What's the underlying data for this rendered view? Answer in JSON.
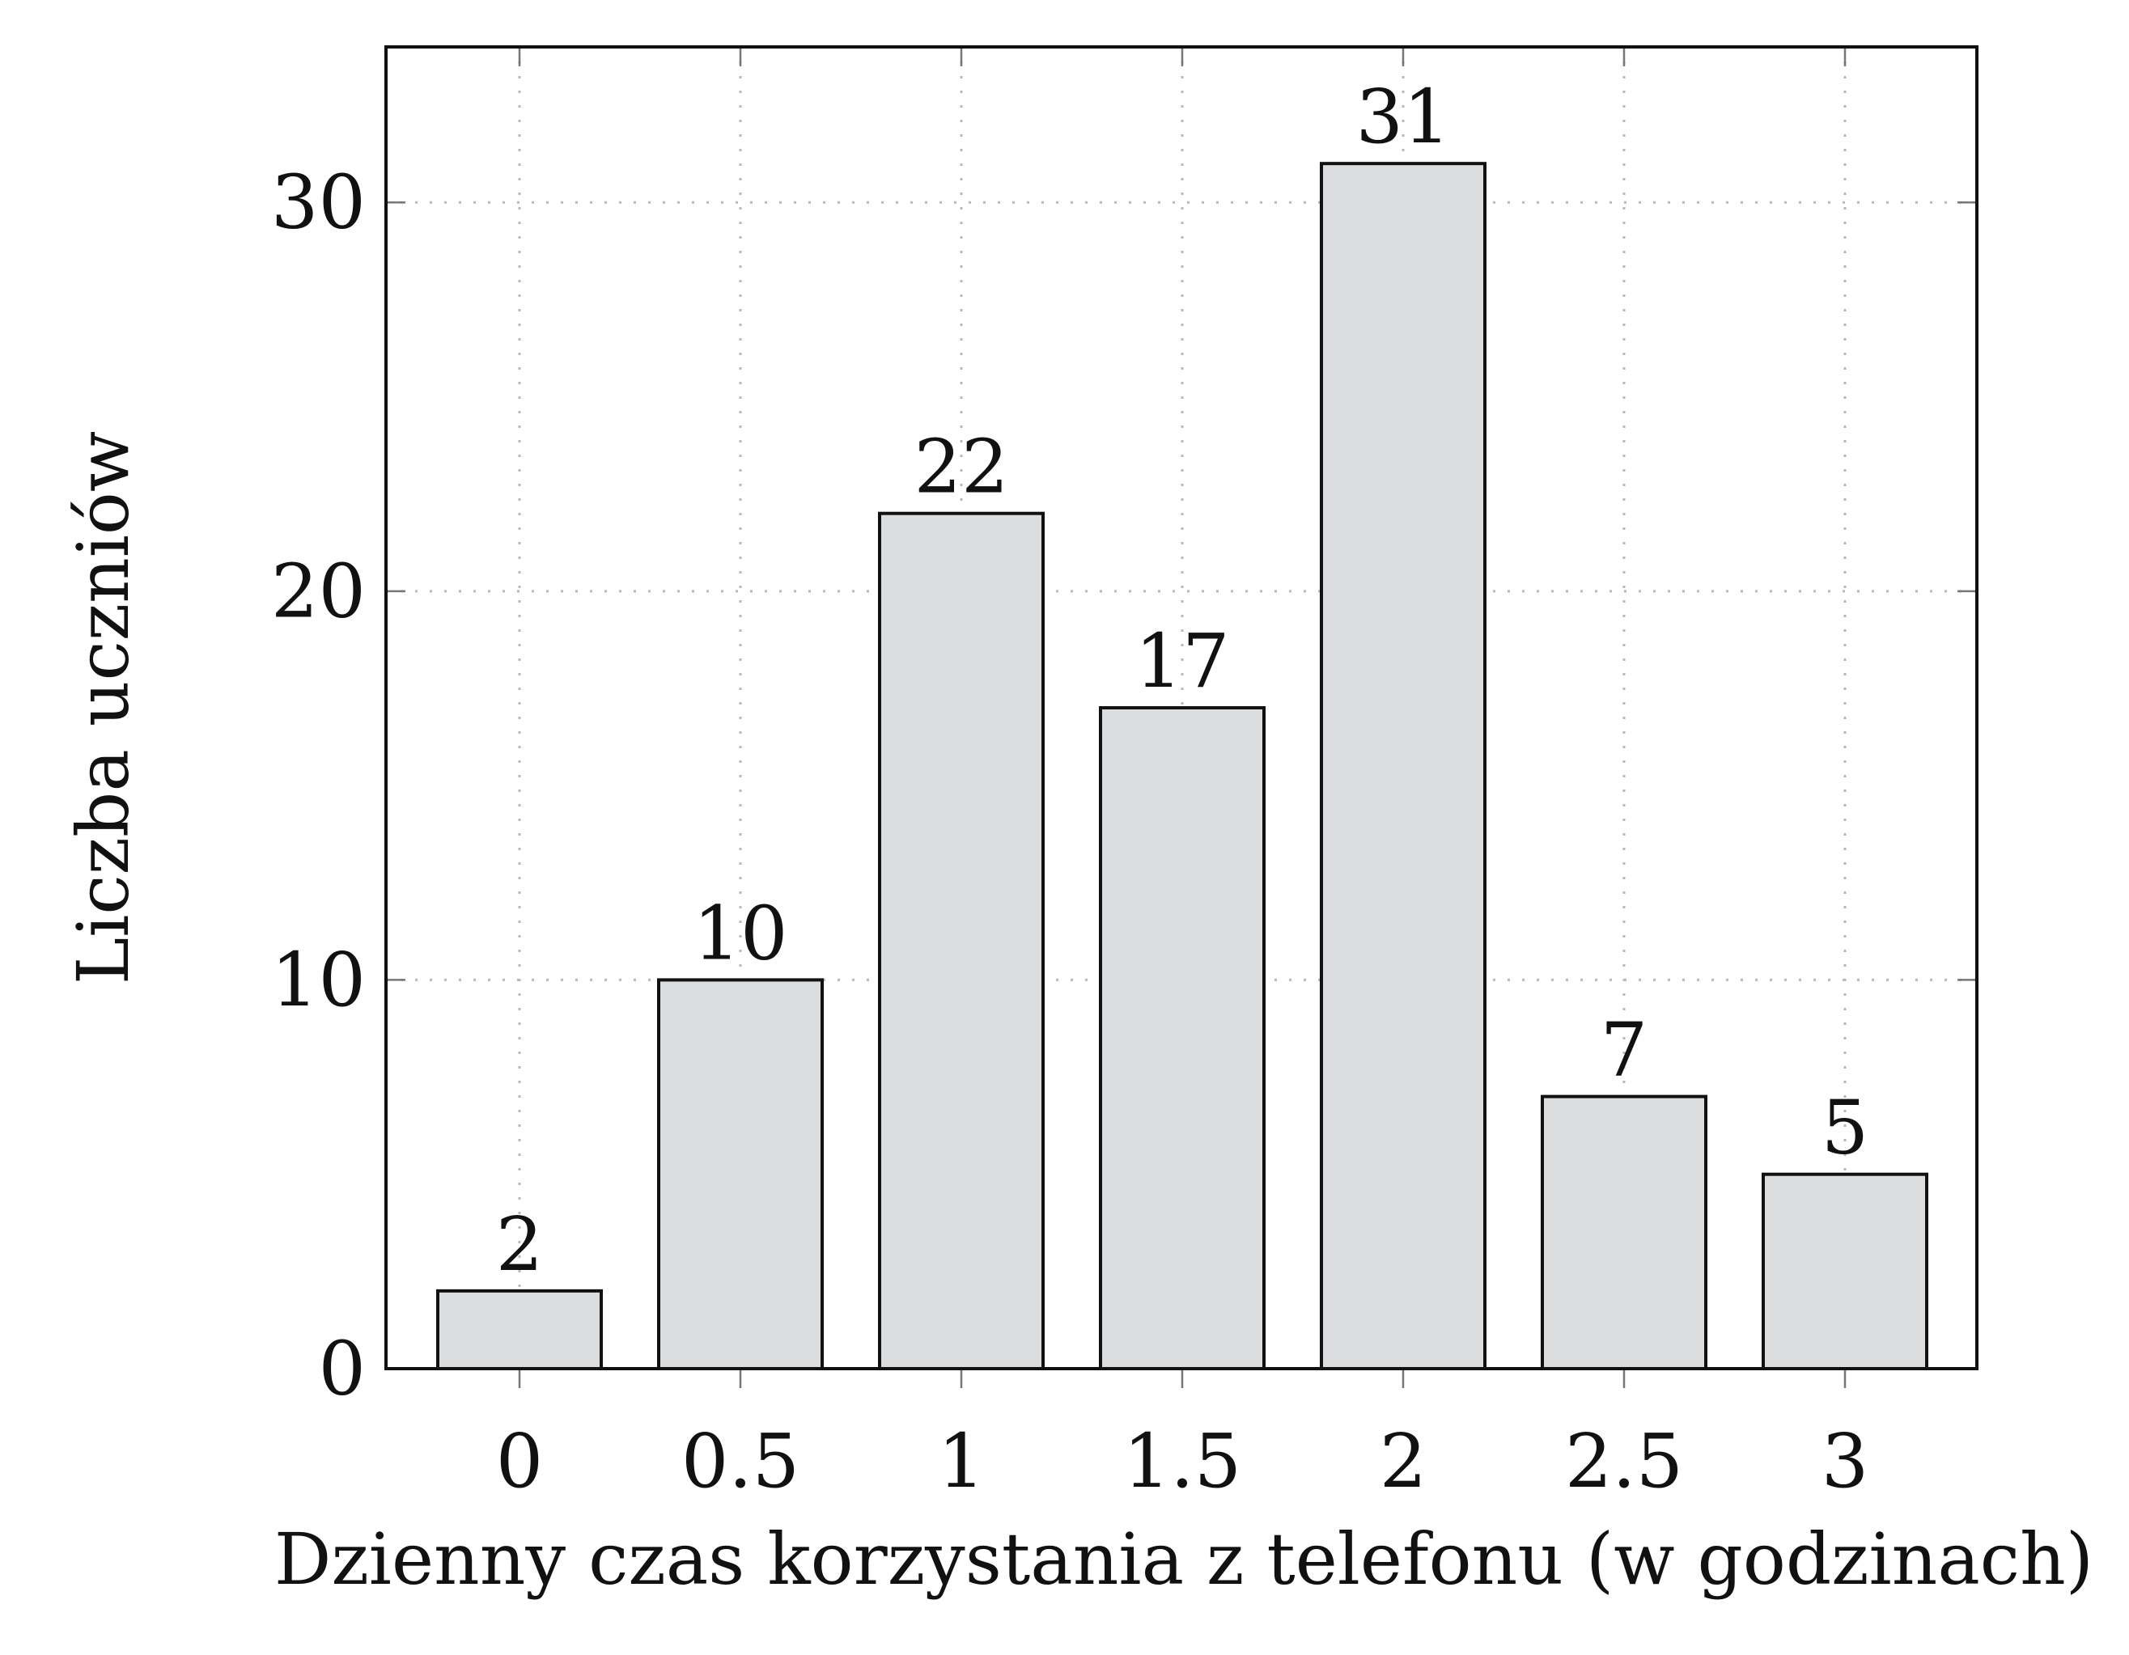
{
  "chart_data": {
    "type": "bar",
    "categories": [
      "0",
      "0.5",
      "1",
      "1.5",
      "2",
      "2.5",
      "3"
    ],
    "values": [
      2,
      10,
      22,
      17,
      31,
      7,
      5
    ],
    "data_labels": [
      "2",
      "10",
      "22",
      "17",
      "31",
      "7",
      "5"
    ],
    "y_ticks": [
      0,
      10,
      20,
      30
    ],
    "y_tick_labels": [
      "0",
      "10",
      "20",
      "30"
    ],
    "ylim": [
      0,
      34
    ],
    "xlabel": "Dzienny czas korzystania z telefonu (w godzinach)",
    "ylabel": "Liczba uczniów",
    "grid": true,
    "legend": "none",
    "colors": {
      "bar_fill": "#dcdddf",
      "bar_stroke": "#111111",
      "grid": "#b8b8b8",
      "text": "#111111"
    }
  }
}
